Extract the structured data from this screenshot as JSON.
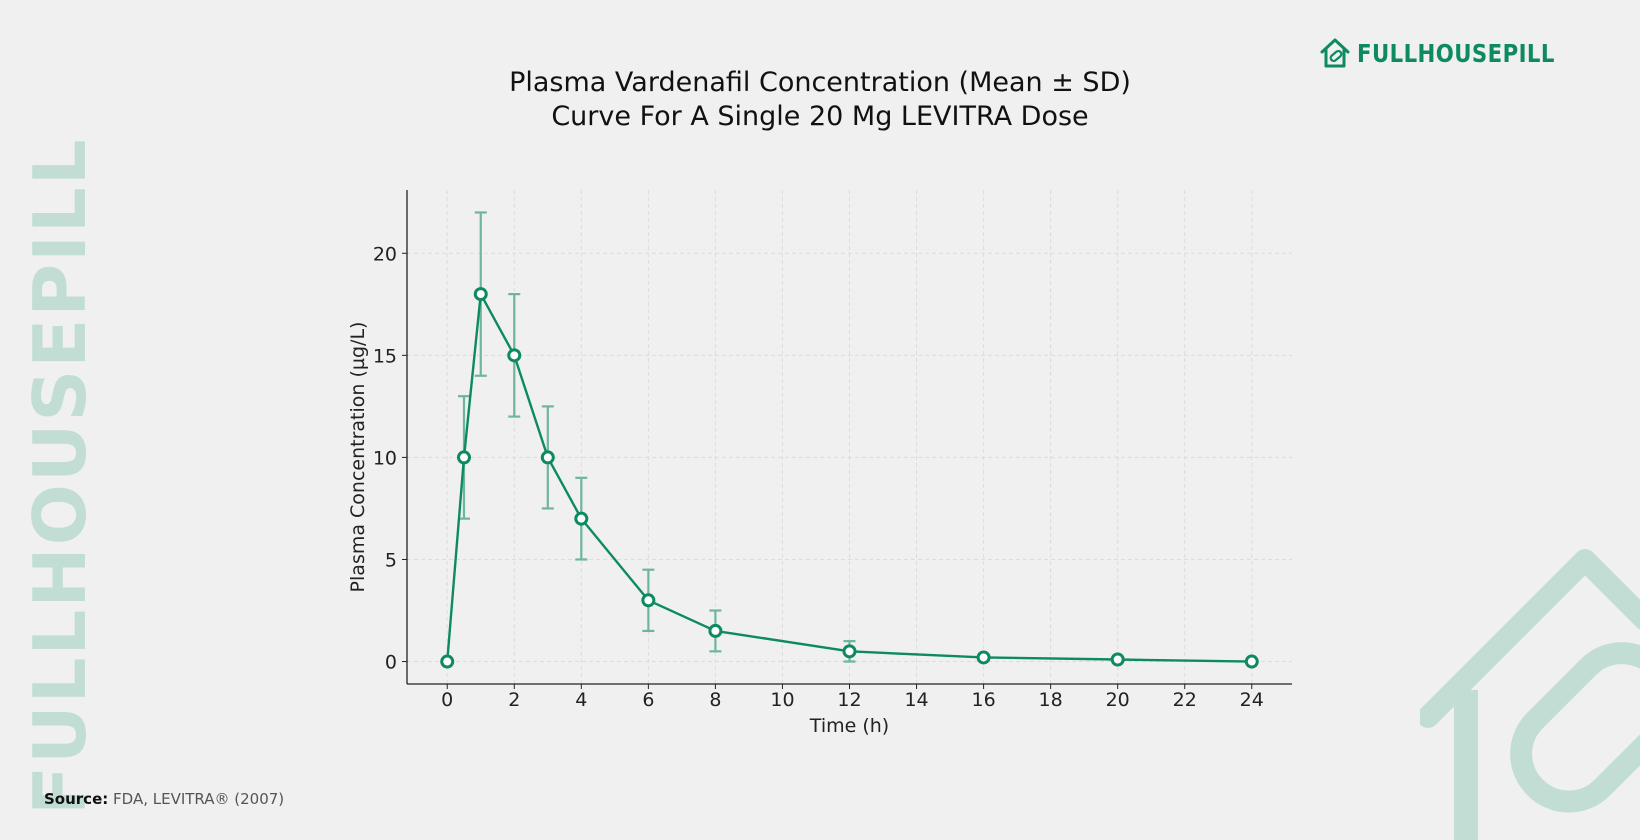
{
  "header": {
    "title_line1": "Plasma Vardenafil Concentration (Mean ± SD)",
    "title_line2": "Curve For A Single 20 Mg LEVITRA Dose"
  },
  "brand": {
    "logo_text": "FULLHOUSEPILL",
    "watermark_text": "FULLHOUSEPILL",
    "color": "#0e8a5f",
    "watermark_color": "#c2ddd4"
  },
  "source": {
    "label": "Source:",
    "text": "FDA, LEVITRA® (2007)"
  },
  "chart_data": {
    "type": "line",
    "title": "Plasma Vardenafil Concentration (Mean ± SD) Curve For A Single 20 Mg LEVITRA Dose",
    "xlabel": "Time (h)",
    "ylabel": "Plasma Concentration (µg/L)",
    "xlim": [
      -1.2,
      25.2
    ],
    "ylim": [
      -1.1,
      23.1
    ],
    "xticks": [
      0,
      2,
      4,
      6,
      8,
      10,
      12,
      14,
      16,
      18,
      20,
      22,
      24
    ],
    "yticks": [
      0,
      5,
      10,
      15,
      20
    ],
    "grid": true,
    "line_color": "#0e8a5f",
    "errorbar_color": "#6fb59c",
    "series": [
      {
        "x": [
          0,
          0.5,
          1,
          2,
          3,
          4,
          6,
          8,
          12,
          16,
          20,
          24
        ],
        "y": [
          0,
          10,
          18,
          15,
          10,
          7,
          3,
          1.5,
          0.5,
          0.2,
          0.1,
          0
        ],
        "sd": [
          0,
          3,
          4,
          3,
          2.5,
          2,
          1.5,
          1,
          0.5,
          0,
          0,
          0
        ]
      }
    ]
  }
}
